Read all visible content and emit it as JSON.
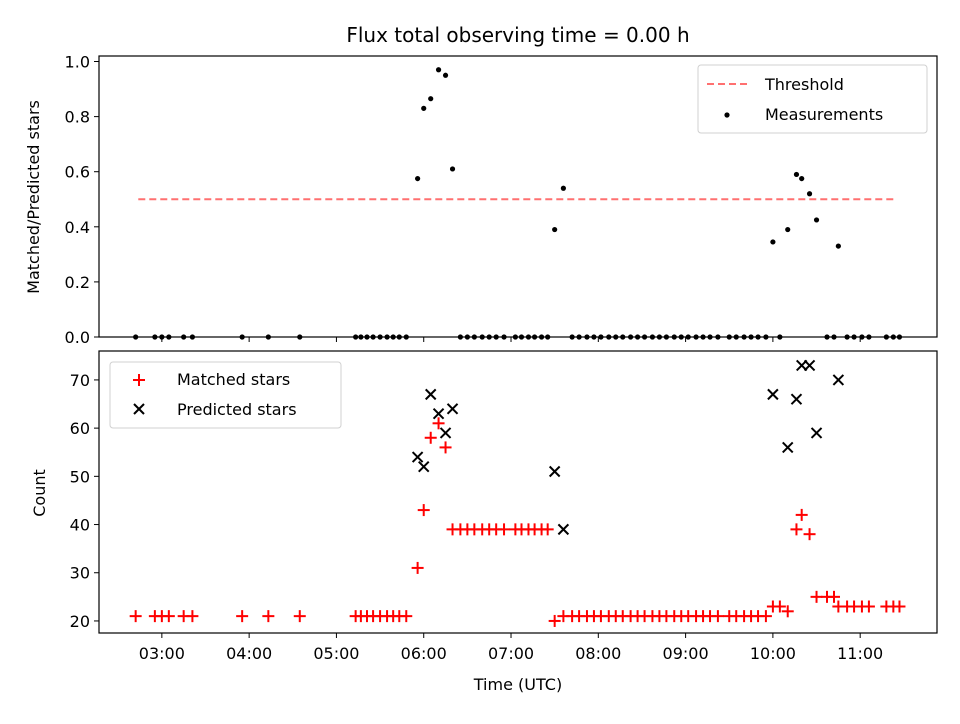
{
  "chart_data": [
    {
      "type": "scatter",
      "title": "Flux total observing time = 0.00 h",
      "xlabel": "",
      "ylabel": "Matched/Predicted stars",
      "xlim": [
        2.28,
        11.88
      ],
      "ylim": [
        0,
        1.02
      ],
      "yticks": [
        "0.0",
        "0.2",
        "0.4",
        "0.6",
        "0.8",
        "1.0"
      ],
      "legend_position": "top-right",
      "threshold": {
        "name": "Threshold",
        "value": 0.5,
        "x_start": 2.73,
        "x_end": 11.4,
        "color": "#ff7070",
        "style": "dashed"
      },
      "series": [
        {
          "name": "Measurements",
          "color": "#000000",
          "marker": "dot",
          "points": [
            [
              2.7,
              0
            ],
            [
              2.92,
              0
            ],
            [
              3.0,
              0
            ],
            [
              3.08,
              0
            ],
            [
              3.25,
              0
            ],
            [
              3.35,
              0
            ],
            [
              3.92,
              0
            ],
            [
              4.22,
              0
            ],
            [
              4.58,
              0
            ],
            [
              5.22,
              0
            ],
            [
              5.28,
              0
            ],
            [
              5.35,
              0
            ],
            [
              5.42,
              0
            ],
            [
              5.5,
              0
            ],
            [
              5.58,
              0
            ],
            [
              5.65,
              0
            ],
            [
              5.72,
              0
            ],
            [
              5.8,
              0
            ],
            [
              5.93,
              0.575
            ],
            [
              6.0,
              0.83
            ],
            [
              6.08,
              0.865
            ],
            [
              6.17,
              0.97
            ],
            [
              6.25,
              0.95
            ],
            [
              6.33,
              0.61
            ],
            [
              6.42,
              0
            ],
            [
              6.5,
              0
            ],
            [
              6.58,
              0
            ],
            [
              6.67,
              0
            ],
            [
              6.75,
              0
            ],
            [
              6.83,
              0
            ],
            [
              6.92,
              0
            ],
            [
              7.05,
              0
            ],
            [
              7.12,
              0
            ],
            [
              7.2,
              0
            ],
            [
              7.27,
              0
            ],
            [
              7.35,
              0
            ],
            [
              7.42,
              0
            ],
            [
              7.5,
              0.39
            ],
            [
              7.6,
              0.54
            ],
            [
              7.7,
              0
            ],
            [
              7.78,
              0
            ],
            [
              7.87,
              0
            ],
            [
              7.95,
              0
            ],
            [
              8.03,
              0
            ],
            [
              8.12,
              0
            ],
            [
              8.2,
              0
            ],
            [
              8.28,
              0
            ],
            [
              8.37,
              0
            ],
            [
              8.45,
              0
            ],
            [
              8.53,
              0
            ],
            [
              8.62,
              0
            ],
            [
              8.7,
              0
            ],
            [
              8.78,
              0
            ],
            [
              8.87,
              0
            ],
            [
              8.95,
              0
            ],
            [
              9.03,
              0
            ],
            [
              9.12,
              0
            ],
            [
              9.2,
              0
            ],
            [
              9.28,
              0
            ],
            [
              9.37,
              0
            ],
            [
              9.5,
              0
            ],
            [
              9.58,
              0
            ],
            [
              9.67,
              0
            ],
            [
              9.75,
              0
            ],
            [
              9.83,
              0
            ],
            [
              9.92,
              0
            ],
            [
              10.0,
              0.345
            ],
            [
              10.08,
              0
            ],
            [
              10.17,
              0.39
            ],
            [
              10.27,
              0.59
            ],
            [
              10.33,
              0.575
            ],
            [
              10.42,
              0.52
            ],
            [
              10.5,
              0.425
            ],
            [
              10.62,
              0
            ],
            [
              10.7,
              0
            ],
            [
              10.75,
              0.33
            ],
            [
              10.85,
              0
            ],
            [
              10.93,
              0
            ],
            [
              11.02,
              0
            ],
            [
              11.1,
              0
            ],
            [
              11.3,
              0
            ],
            [
              11.38,
              0
            ],
            [
              11.45,
              0
            ]
          ]
        }
      ]
    },
    {
      "type": "scatter",
      "title": "",
      "xlabel": "Time (UTC)",
      "ylabel": "Count",
      "xlim": [
        2.28,
        11.88
      ],
      "ylim": [
        17.5,
        76
      ],
      "yticks": [
        "20",
        "30",
        "40",
        "50",
        "60",
        "70"
      ],
      "xticks": [
        "03:00",
        "04:00",
        "05:00",
        "06:00",
        "07:00",
        "08:00",
        "09:00",
        "10:00",
        "11:00"
      ],
      "legend_position": "top-left",
      "series": [
        {
          "name": "Matched stars",
          "color": "#ff0000",
          "marker": "plus",
          "points": [
            [
              2.7,
              21
            ],
            [
              2.92,
              21
            ],
            [
              3.0,
              21
            ],
            [
              3.08,
              21
            ],
            [
              3.25,
              21
            ],
            [
              3.35,
              21
            ],
            [
              3.92,
              21
            ],
            [
              4.22,
              21
            ],
            [
              4.58,
              21
            ],
            [
              5.22,
              21
            ],
            [
              5.28,
              21
            ],
            [
              5.35,
              21
            ],
            [
              5.42,
              21
            ],
            [
              5.5,
              21
            ],
            [
              5.58,
              21
            ],
            [
              5.65,
              21
            ],
            [
              5.72,
              21
            ],
            [
              5.8,
              21
            ],
            [
              5.93,
              31
            ],
            [
              6.0,
              43
            ],
            [
              6.08,
              58
            ],
            [
              6.17,
              61
            ],
            [
              6.25,
              56
            ],
            [
              6.33,
              39
            ],
            [
              6.42,
              39
            ],
            [
              6.5,
              39
            ],
            [
              6.58,
              39
            ],
            [
              6.67,
              39
            ],
            [
              6.75,
              39
            ],
            [
              6.83,
              39
            ],
            [
              6.92,
              39
            ],
            [
              7.05,
              39
            ],
            [
              7.12,
              39
            ],
            [
              7.2,
              39
            ],
            [
              7.27,
              39
            ],
            [
              7.35,
              39
            ],
            [
              7.42,
              39
            ],
            [
              7.5,
              20
            ],
            [
              7.6,
              21
            ],
            [
              7.7,
              21
            ],
            [
              7.78,
              21
            ],
            [
              7.87,
              21
            ],
            [
              7.95,
              21
            ],
            [
              8.03,
              21
            ],
            [
              8.12,
              21
            ],
            [
              8.2,
              21
            ],
            [
              8.28,
              21
            ],
            [
              8.37,
              21
            ],
            [
              8.45,
              21
            ],
            [
              8.53,
              21
            ],
            [
              8.62,
              21
            ],
            [
              8.7,
              21
            ],
            [
              8.78,
              21
            ],
            [
              8.87,
              21
            ],
            [
              8.95,
              21
            ],
            [
              9.03,
              21
            ],
            [
              9.12,
              21
            ],
            [
              9.2,
              21
            ],
            [
              9.28,
              21
            ],
            [
              9.37,
              21
            ],
            [
              9.5,
              21
            ],
            [
              9.58,
              21
            ],
            [
              9.67,
              21
            ],
            [
              9.75,
              21
            ],
            [
              9.83,
              21
            ],
            [
              9.92,
              21
            ],
            [
              10.0,
              23
            ],
            [
              10.08,
              23
            ],
            [
              10.17,
              22
            ],
            [
              10.27,
              39
            ],
            [
              10.33,
              42
            ],
            [
              10.42,
              38
            ],
            [
              10.5,
              25
            ],
            [
              10.62,
              25
            ],
            [
              10.7,
              25
            ],
            [
              10.75,
              23
            ],
            [
              10.85,
              23
            ],
            [
              10.93,
              23
            ],
            [
              11.02,
              23
            ],
            [
              11.1,
              23
            ],
            [
              11.3,
              23
            ],
            [
              11.38,
              23
            ],
            [
              11.45,
              23
            ]
          ]
        },
        {
          "name": "Predicted stars",
          "color": "#000000",
          "marker": "x",
          "points": [
            [
              5.93,
              54
            ],
            [
              6.0,
              52
            ],
            [
              6.08,
              67
            ],
            [
              6.17,
              63
            ],
            [
              6.25,
              59
            ],
            [
              6.33,
              64
            ],
            [
              7.5,
              51
            ],
            [
              7.6,
              39
            ],
            [
              10.0,
              67
            ],
            [
              10.17,
              56
            ],
            [
              10.27,
              66
            ],
            [
              10.33,
              73
            ],
            [
              10.42,
              73
            ],
            [
              10.5,
              59
            ],
            [
              10.75,
              70
            ]
          ]
        }
      ]
    }
  ]
}
